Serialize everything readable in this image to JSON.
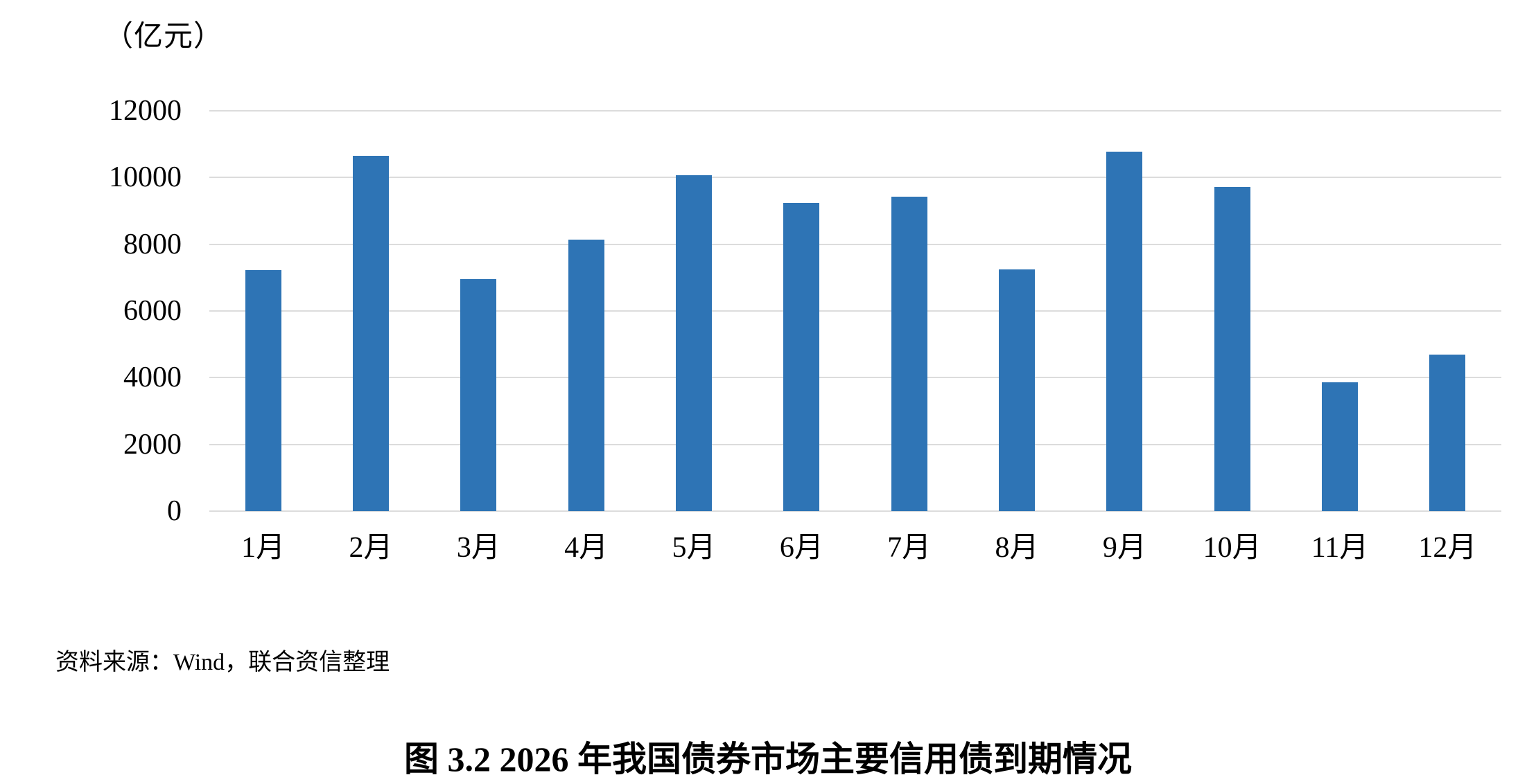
{
  "figure": {
    "unit_label": "（亿元）",
    "source_note": "资料来源：Wind，联合资信整理",
    "caption": "图 3.2  2026 年我国债券市场主要信用债到期情况"
  },
  "colors": {
    "bar": "#2E74B5",
    "gridline": "#DCDCDC",
    "text": "#000000",
    "background": "#FFFFFF"
  },
  "chart_data": {
    "type": "bar",
    "title": "图 3.2  2026 年我国债券市场主要信用债到期情况",
    "unit": "亿元",
    "categories": [
      "1月",
      "2月",
      "3月",
      "4月",
      "5月",
      "6月",
      "7月",
      "8月",
      "9月",
      "10月",
      "11月",
      "12月"
    ],
    "values": [
      7230,
      10650,
      6960,
      8130,
      10060,
      9230,
      9430,
      7250,
      10780,
      9710,
      3860,
      4690
    ],
    "xlabel": "",
    "ylabel": "（亿元）",
    "ylim": [
      0,
      12000
    ],
    "yticks": [
      0,
      2000,
      4000,
      6000,
      8000,
      10000,
      12000
    ],
    "grid": "horizontal",
    "legend": "none",
    "source": "资料来源：Wind，联合资信整理"
  }
}
